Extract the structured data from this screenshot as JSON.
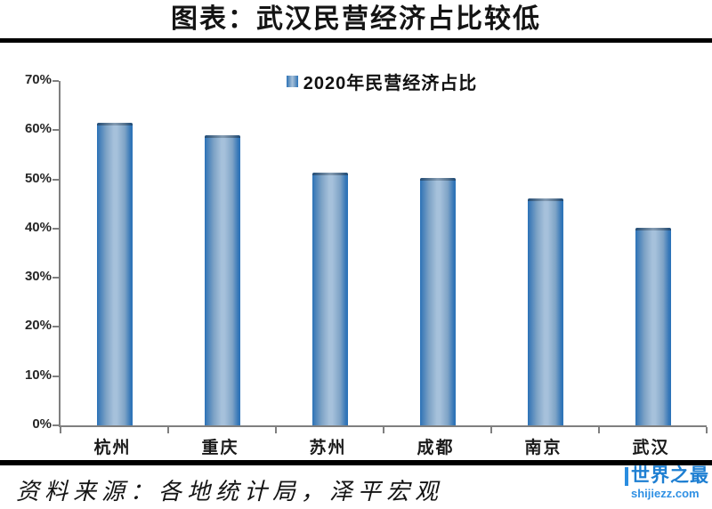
{
  "header": {
    "title": "图表：武汉民营经济占比较低"
  },
  "chart_data": {
    "type": "bar",
    "title": "图表：武汉民营经济占比较低",
    "legend": "2020年民营经济占比",
    "legend_position": "top-center",
    "categories": [
      "杭州",
      "重庆",
      "苏州",
      "成都",
      "南京",
      "武汉"
    ],
    "values": [
      61.5,
      59.0,
      51.3,
      50.2,
      46.2,
      40.2
    ],
    "xlabel": "",
    "ylabel": "",
    "ylim": [
      0,
      70
    ],
    "ytick_step": 10,
    "ytick_suffix": "%",
    "grid": false,
    "bar_color_edge": "#2A72B8",
    "bar_color_center": "#A6C1DB",
    "axis_color": "#7f7f7f"
  },
  "footer": {
    "source": "资料来源：各地统计局，泽平宏观"
  },
  "watermark": {
    "brand": "世界之最",
    "domain": "shijiezz.com",
    "color": "#1E7FD2"
  }
}
